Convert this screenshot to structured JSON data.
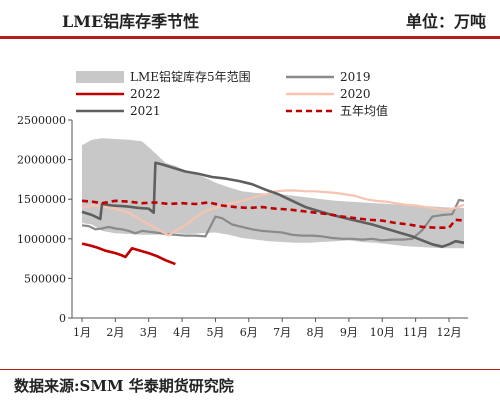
{
  "header": {
    "title": "LME铝库存季节性",
    "unit": "单位：万吨"
  },
  "footer": {
    "source": "数据来源:SMM  华泰期货研究院"
  },
  "chart_data": {
    "type": "line",
    "title": "LME铝库存季节性",
    "xlabel": "",
    "ylabel": "",
    "ylim": [
      0,
      2500000
    ],
    "yticks": [
      0,
      500000,
      1000000,
      1500000,
      2000000,
      2500000
    ],
    "ytick_labels": [
      "0",
      "500000",
      "1000000",
      "1500000",
      "2000000",
      "2500000"
    ],
    "xticks": [
      1,
      2,
      3,
      4,
      5,
      6,
      7,
      8,
      9,
      10,
      11,
      12
    ],
    "xtick_labels": [
      "1月",
      "2月",
      "3月",
      "4月",
      "5月",
      "6月",
      "7月",
      "8月",
      "9月",
      "10月",
      "11月",
      "12月"
    ],
    "xlim": [
      1,
      12.45
    ],
    "grid": false,
    "legend_position": "top",
    "band": {
      "name": "LME铝锭库存5年范围",
      "color": "#c8c8c8",
      "x": [
        1.0,
        1.3,
        1.6,
        2.0,
        2.4,
        2.8,
        3.2,
        3.5,
        3.8,
        4.2,
        4.6,
        5.0,
        5.4,
        5.8,
        6.2,
        6.6,
        7.0,
        7.4,
        7.8,
        8.2,
        8.6,
        9.0,
        9.4,
        9.8,
        10.2,
        10.6,
        11.0,
        11.4,
        11.8,
        12.2,
        12.45
      ],
      "high": [
        2180000,
        2250000,
        2270000,
        2260000,
        2250000,
        2230000,
        2080000,
        1960000,
        1920000,
        1840000,
        1790000,
        1710000,
        1650000,
        1600000,
        1580000,
        1570000,
        1560000,
        1540000,
        1520000,
        1500000,
        1480000,
        1470000,
        1460000,
        1450000,
        1440000,
        1430000,
        1420000,
        1410000,
        1400000,
        1390000,
        1390000
      ],
      "low": [
        1200000,
        1180000,
        1100000,
        1070000,
        1060000,
        1050000,
        1050000,
        1060000,
        1070000,
        1060000,
        1070000,
        1080000,
        1050000,
        1010000,
        990000,
        970000,
        960000,
        950000,
        950000,
        960000,
        970000,
        980000,
        960000,
        950000,
        930000,
        910000,
        900000,
        890000,
        880000,
        880000,
        880000
      ]
    },
    "series": [
      {
        "name": "2019",
        "color": "#8a8a8a",
        "width": 2.2,
        "dash": "",
        "x": [
          1.0,
          1.2,
          1.4,
          1.6,
          1.8,
          2.0,
          2.2,
          2.4,
          2.6,
          2.8,
          3.0,
          3.2,
          3.5,
          3.8,
          4.1,
          4.4,
          4.7,
          5.0,
          5.2,
          5.5,
          5.8,
          6.1,
          6.4,
          6.7,
          7.0,
          7.3,
          7.6,
          7.9,
          8.2,
          8.5,
          8.8,
          9.1,
          9.4,
          9.7,
          10.0,
          10.3,
          10.6,
          10.9,
          11.2,
          11.5,
          11.8,
          12.1,
          12.3,
          12.45
        ],
        "y": [
          1170000,
          1160000,
          1120000,
          1130000,
          1150000,
          1130000,
          1120000,
          1100000,
          1070000,
          1100000,
          1090000,
          1080000,
          1060000,
          1050000,
          1040000,
          1040000,
          1030000,
          1280000,
          1260000,
          1180000,
          1150000,
          1120000,
          1100000,
          1090000,
          1080000,
          1050000,
          1040000,
          1040000,
          1030000,
          1010000,
          1000000,
          1000000,
          990000,
          1000000,
          980000,
          990000,
          990000,
          1000000,
          1110000,
          1280000,
          1300000,
          1310000,
          1490000,
          1480000
        ]
      },
      {
        "name": "2020",
        "color": "#f6c4b0",
        "width": 2.2,
        "dash": "",
        "x": [
          1.0,
          1.3,
          1.6,
          2.0,
          2.4,
          2.8,
          3.1,
          3.4,
          3.6,
          3.8,
          4.1,
          4.4,
          4.7,
          5.0,
          5.3,
          5.6,
          5.9,
          6.2,
          6.5,
          6.8,
          7.1,
          7.4,
          7.7,
          8.0,
          8.3,
          8.6,
          8.9,
          9.2,
          9.5,
          9.8,
          10.1,
          10.4,
          10.7,
          11.0,
          11.3,
          11.6,
          11.9,
          12.2,
          12.45
        ],
        "y": [
          1390000,
          1420000,
          1410000,
          1380000,
          1330000,
          1230000,
          1160000,
          1090000,
          1040000,
          1100000,
          1170000,
          1270000,
          1350000,
          1390000,
          1430000,
          1460000,
          1490000,
          1530000,
          1560000,
          1600000,
          1610000,
          1610000,
          1600000,
          1600000,
          1590000,
          1580000,
          1560000,
          1540000,
          1500000,
          1480000,
          1470000,
          1450000,
          1430000,
          1420000,
          1400000,
          1380000,
          1360000,
          1390000,
          1430000
        ]
      },
      {
        "name": "2021",
        "color": "#5f5f5f",
        "width": 2.6,
        "dash": "",
        "x": [
          1.0,
          1.3,
          1.55,
          1.6,
          1.9,
          2.3,
          2.7,
          3.0,
          3.15,
          3.2,
          3.4,
          3.7,
          4.1,
          4.5,
          4.9,
          5.3,
          5.7,
          6.1,
          6.5,
          6.9,
          7.3,
          7.7,
          8.1,
          8.5,
          8.9,
          9.3,
          9.7,
          10.1,
          10.5,
          10.9,
          11.2,
          11.5,
          11.8,
          12.0,
          12.2,
          12.45
        ],
        "y": [
          1340000,
          1300000,
          1250000,
          1440000,
          1420000,
          1410000,
          1390000,
          1380000,
          1330000,
          1960000,
          1940000,
          1900000,
          1850000,
          1820000,
          1780000,
          1760000,
          1730000,
          1690000,
          1620000,
          1560000,
          1480000,
          1400000,
          1350000,
          1300000,
          1260000,
          1220000,
          1180000,
          1130000,
          1080000,
          1030000,
          980000,
          930000,
          900000,
          930000,
          970000,
          950000
        ]
      },
      {
        "name": "2022",
        "color": "#c00000",
        "width": 2.6,
        "dash": "",
        "x": [
          1.0,
          1.2,
          1.45,
          1.7,
          2.0,
          2.2,
          2.3,
          2.5,
          2.75,
          3.0,
          3.25,
          3.5,
          3.8
        ],
        "y": [
          940000,
          920000,
          890000,
          850000,
          820000,
          790000,
          770000,
          880000,
          850000,
          820000,
          780000,
          730000,
          680000
        ]
      },
      {
        "name": "五年均值",
        "color": "#c00000",
        "width": 2.6,
        "dash": "6,4",
        "x": [
          1.0,
          1.3,
          1.6,
          2.0,
          2.4,
          2.8,
          3.2,
          3.6,
          4.0,
          4.4,
          4.8,
          5.2,
          5.6,
          6.0,
          6.4,
          6.8,
          7.2,
          7.6,
          8.0,
          8.4,
          8.8,
          9.2,
          9.6,
          10.0,
          10.4,
          10.8,
          11.2,
          11.6,
          12.0,
          12.2,
          12.45
        ],
        "y": [
          1480000,
          1470000,
          1450000,
          1480000,
          1470000,
          1450000,
          1460000,
          1440000,
          1450000,
          1440000,
          1460000,
          1420000,
          1400000,
          1390000,
          1400000,
          1380000,
          1370000,
          1350000,
          1330000,
          1310000,
          1280000,
          1260000,
          1240000,
          1230000,
          1200000,
          1180000,
          1150000,
          1140000,
          1140000,
          1240000,
          1230000
        ]
      }
    ],
    "legend": [
      {
        "label": "LME铝锭库存5年范围",
        "kind": "band",
        "color": "#c8c8c8",
        "dash": ""
      },
      {
        "label": "2019",
        "kind": "line",
        "color": "#8a8a8a",
        "dash": ""
      },
      {
        "label": "2022",
        "kind": "line",
        "color": "#c00000",
        "dash": ""
      },
      {
        "label": "2020",
        "kind": "line",
        "color": "#f6c4b0",
        "dash": ""
      },
      {
        "label": "2021",
        "kind": "line",
        "color": "#5f5f5f",
        "dash": ""
      },
      {
        "label": "五年均值",
        "kind": "line",
        "color": "#c00000",
        "dash": "6,4"
      }
    ]
  }
}
